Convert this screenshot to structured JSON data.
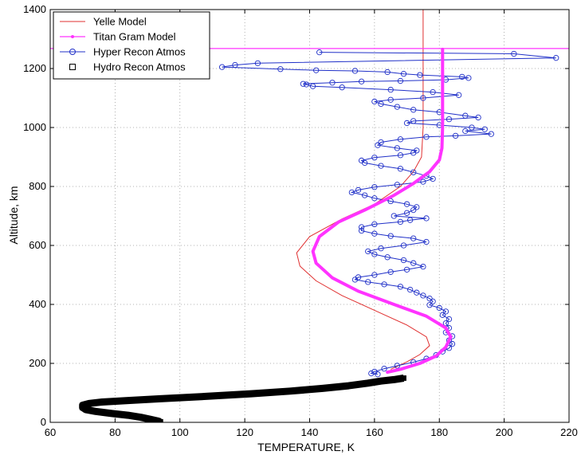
{
  "chart_data": {
    "type": "line",
    "title": "",
    "xlabel": "TEMPERATURE, K",
    "ylabel": "Altitude, km",
    "xlim": [
      60,
      220
    ],
    "ylim": [
      0,
      1400
    ],
    "xticks": [
      "60",
      "80",
      "100",
      "120",
      "140",
      "160",
      "180",
      "200",
      "220"
    ],
    "yticks": [
      "0",
      "200",
      "400",
      "600",
      "800",
      "1000",
      "1200",
      "1400"
    ],
    "grid": true,
    "legend_position": "top-left",
    "series": [
      {
        "name": "Yelle Model",
        "color": "#e03030",
        "marker": "none",
        "points": [
          [
            175,
            1400
          ],
          [
            175,
            1260
          ],
          [
            175,
            1000
          ],
          [
            174.5,
            900
          ],
          [
            172,
            850
          ],
          [
            168,
            800
          ],
          [
            160,
            740
          ],
          [
            150,
            690
          ],
          [
            140,
            630
          ],
          [
            136,
            575
          ],
          [
            137,
            530
          ],
          [
            142,
            480
          ],
          [
            150,
            430
          ],
          [
            160,
            380
          ],
          [
            170,
            330
          ],
          [
            176,
            290
          ],
          [
            177,
            260
          ],
          [
            174,
            230
          ],
          [
            170,
            205
          ],
          [
            167,
            190
          ],
          [
            165,
            180
          ]
        ]
      },
      {
        "name": "Titan Gram Model",
        "color": "#ff33ff",
        "marker": "dot",
        "horizontal_line_y": 1268,
        "points": [
          [
            181,
            1265
          ],
          [
            181,
            1000
          ],
          [
            180.8,
            930
          ],
          [
            180,
            890
          ],
          [
            177,
            850
          ],
          [
            172,
            810
          ],
          [
            166,
            770
          ],
          [
            157,
            720
          ],
          [
            149,
            680
          ],
          [
            143,
            630
          ],
          [
            141,
            580
          ],
          [
            142,
            540
          ],
          [
            147,
            490
          ],
          [
            155,
            445
          ],
          [
            166,
            400
          ],
          [
            176,
            360
          ],
          [
            182,
            320
          ],
          [
            183.5,
            290
          ],
          [
            182,
            255
          ],
          [
            179,
            225
          ],
          [
            174,
            200
          ],
          [
            168,
            180
          ],
          [
            164,
            170
          ]
        ]
      },
      {
        "name": "Hyper Recon Atmos",
        "color": "#2030c8",
        "marker": "circle",
        "points": [
          [
            143,
            1255
          ],
          [
            203,
            1250
          ],
          [
            216,
            1236
          ],
          [
            124,
            1218
          ],
          [
            117,
            1212
          ],
          [
            113,
            1205
          ],
          [
            131,
            1198
          ],
          [
            142,
            1194
          ],
          [
            154,
            1192
          ],
          [
            164,
            1188
          ],
          [
            169,
            1182
          ],
          [
            174,
            1178
          ],
          [
            187,
            1172
          ],
          [
            189,
            1168
          ],
          [
            182,
            1162
          ],
          [
            168,
            1158
          ],
          [
            156,
            1156
          ],
          [
            147,
            1152
          ],
          [
            138,
            1148
          ],
          [
            139,
            1146
          ],
          [
            141,
            1140
          ],
          [
            150,
            1136
          ],
          [
            165,
            1128
          ],
          [
            178,
            1120
          ],
          [
            186,
            1110
          ],
          [
            175,
            1100
          ],
          [
            165,
            1094
          ],
          [
            160,
            1088
          ],
          [
            162,
            1080
          ],
          [
            167,
            1070
          ],
          [
            172,
            1060
          ],
          [
            180,
            1052
          ],
          [
            188,
            1040
          ],
          [
            192,
            1034
          ],
          [
            183,
            1028
          ],
          [
            172,
            1022
          ],
          [
            170,
            1015
          ],
          [
            180,
            1008
          ],
          [
            190,
            1000
          ],
          [
            194,
            994
          ],
          [
            188,
            988
          ],
          [
            196,
            978
          ],
          [
            185,
            972
          ],
          [
            176,
            968
          ],
          [
            168,
            960
          ],
          [
            162,
            950
          ],
          [
            161,
            940
          ],
          [
            167,
            930
          ],
          [
            173,
            922
          ],
          [
            172,
            914
          ],
          [
            168,
            906
          ],
          [
            160,
            898
          ],
          [
            156,
            888
          ],
          [
            157,
            880
          ],
          [
            162,
            870
          ],
          [
            168,
            860
          ],
          [
            172,
            848
          ],
          [
            176,
            836
          ],
          [
            178,
            826
          ],
          [
            175,
            816
          ],
          [
            167,
            806
          ],
          [
            160,
            798
          ],
          [
            155,
            788
          ],
          [
            153,
            780
          ],
          [
            157,
            770
          ],
          [
            160,
            760
          ],
          [
            165,
            750
          ],
          [
            170,
            740
          ],
          [
            173,
            730
          ],
          [
            172,
            720
          ],
          [
            170,
            710
          ],
          [
            166,
            700
          ],
          [
            176,
            692
          ],
          [
            171,
            686
          ],
          [
            168,
            680
          ],
          [
            160,
            672
          ],
          [
            156,
            662
          ],
          [
            156,
            650
          ],
          [
            160,
            640
          ],
          [
            165,
            632
          ],
          [
            172,
            624
          ],
          [
            176,
            612
          ],
          [
            169,
            600
          ],
          [
            162,
            590
          ],
          [
            158,
            580
          ],
          [
            160,
            570
          ],
          [
            164,
            560
          ],
          [
            169,
            550
          ],
          [
            172,
            540
          ],
          [
            175,
            528
          ],
          [
            170,
            518
          ],
          [
            165,
            510
          ],
          [
            160,
            500
          ],
          [
            155,
            492
          ],
          [
            154,
            484
          ],
          [
            158,
            476
          ],
          [
            163,
            468
          ],
          [
            168,
            460
          ],
          [
            171,
            450
          ],
          [
            173,
            440
          ],
          [
            175,
            430
          ],
          [
            177,
            420
          ],
          [
            178,
            410
          ],
          [
            177,
            398
          ],
          [
            180,
            388
          ],
          [
            182,
            376
          ],
          [
            181,
            364
          ],
          [
            183,
            350
          ],
          [
            182,
            336
          ],
          [
            183,
            320
          ],
          [
            182,
            305
          ],
          [
            184,
            292
          ],
          [
            183,
            278
          ],
          [
            184,
            266
          ],
          [
            183,
            252
          ],
          [
            181,
            240
          ],
          [
            179,
            228
          ],
          [
            176,
            216
          ],
          [
            172,
            204
          ],
          [
            167,
            192
          ],
          [
            163,
            182
          ],
          [
            160,
            172
          ],
          [
            159,
            166
          ],
          [
            161,
            163
          ]
        ]
      },
      {
        "name": "Hydro Recon Atmos",
        "color": "#000000",
        "marker": "square",
        "points": [
          [
            169,
            150
          ],
          [
            166,
            145
          ],
          [
            162,
            140
          ],
          [
            158,
            133
          ],
          [
            152,
            124
          ],
          [
            144,
            115
          ],
          [
            134,
            106
          ],
          [
            122,
            97
          ],
          [
            108,
            88
          ],
          [
            94,
            80
          ],
          [
            84,
            74
          ],
          [
            76,
            69
          ],
          [
            72,
            64
          ],
          [
            70,
            58
          ],
          [
            70,
            50
          ],
          [
            71,
            43
          ],
          [
            74,
            37
          ],
          [
            79,
            30
          ],
          [
            84,
            24
          ],
          [
            88,
            17
          ],
          [
            91,
            10
          ],
          [
            93,
            5
          ],
          [
            94,
            2
          ]
        ]
      }
    ]
  }
}
